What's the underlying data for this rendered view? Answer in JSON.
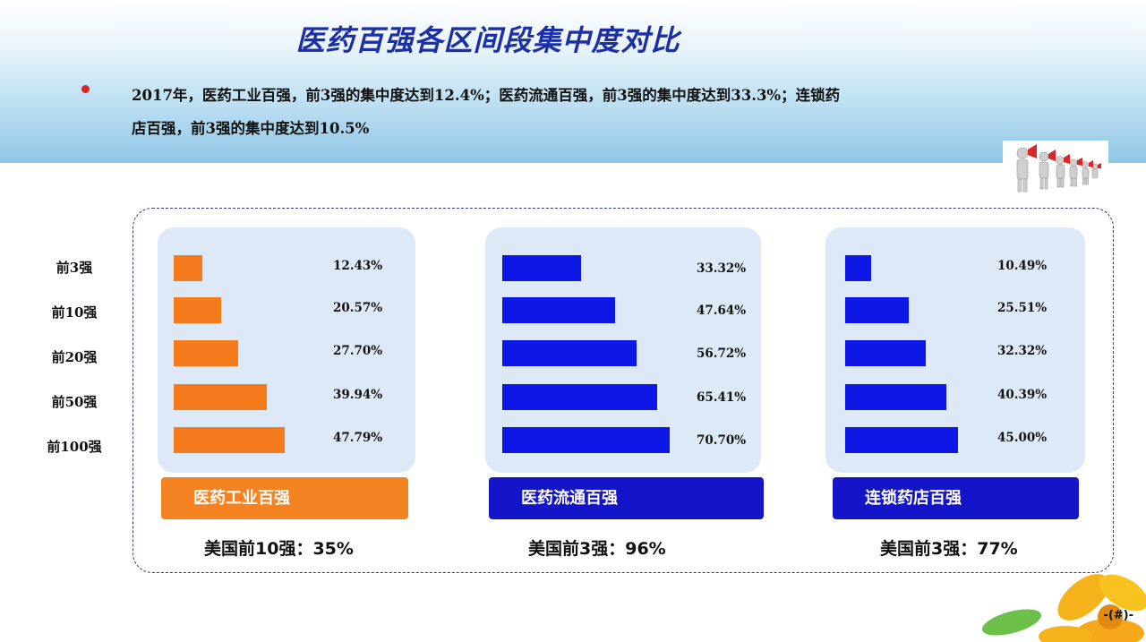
{
  "title": "医药百强各区间段集中度对比",
  "summary": {
    "line1": "2017年，医药工业百强，前3强的集中度达到12.4%；医药流通百强，前3强的集中度达到33.3%；连锁药",
    "line2": "店百强，前3强的集中度达到10.5%"
  },
  "chart_data": {
    "type": "bar",
    "orientation": "horizontal",
    "categories": [
      "前3强",
      "前10强",
      "前20强",
      "前50强",
      "前100强"
    ],
    "xlim": [
      0,
      100
    ],
    "series": [
      {
        "name": "医药工业百强",
        "color": "#f57a1b",
        "values": [
          12.43,
          20.57,
          27.7,
          39.94,
          47.79
        ],
        "labels": [
          "12.43%",
          "20.57%",
          "27.70%",
          "39.94%",
          "47.79%"
        ],
        "us_comparison": "美国前10强：35%"
      },
      {
        "name": "医药流通百强",
        "color": "#0c17e6",
        "values": [
          33.32,
          47.64,
          56.72,
          65.41,
          70.7
        ],
        "labels": [
          "33.32%",
          "47.64%",
          "56.72%",
          "65.41%",
          "70.70%"
        ],
        "us_comparison": "美国前3强：96%"
      },
      {
        "name": "连锁药店百强",
        "color": "#0c17e6",
        "values": [
          10.49,
          25.51,
          32.32,
          40.39,
          45.0
        ],
        "labels": [
          "10.49%",
          "25.51%",
          "32.32%",
          "40.39%",
          "45.00%"
        ],
        "us_comparison": "美国前3强：77%"
      }
    ]
  },
  "name_bar_colors": [
    "#f58220",
    "#1414c8",
    "#1414c8"
  ],
  "page_number": "-(#)-"
}
